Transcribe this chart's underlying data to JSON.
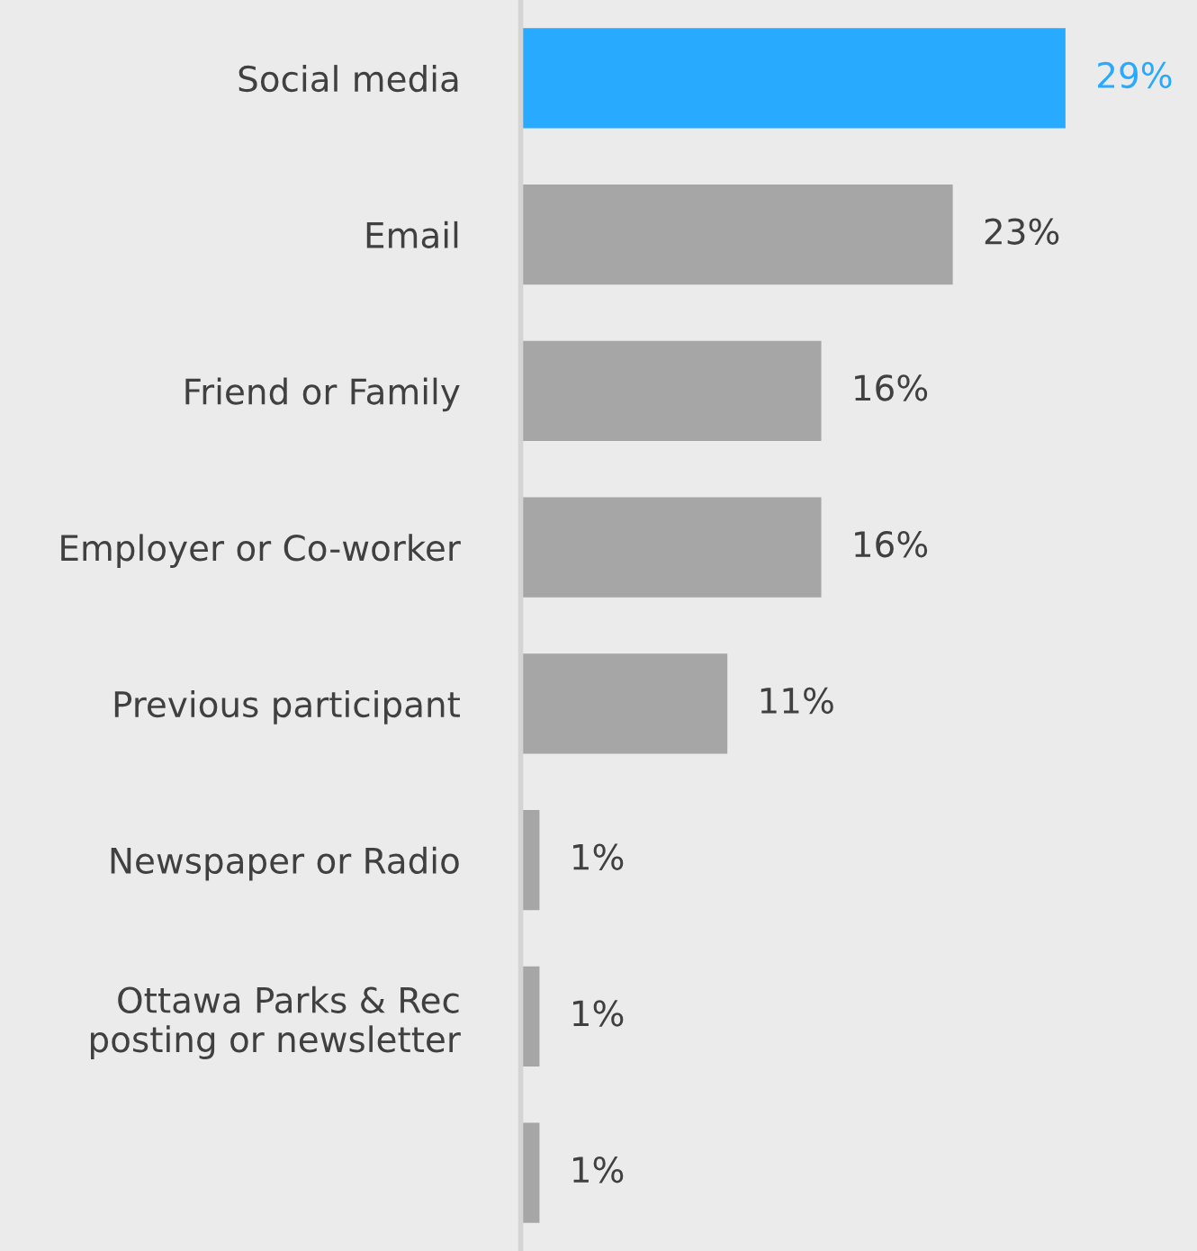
{
  "chart_data": {
    "type": "bar",
    "orientation": "horizontal",
    "categories": [
      "Social media",
      "Email",
      "Friend or Family",
      "Employer or Co-worker",
      "Previous participant",
      "Newspaper or Radio",
      "Ottawa Parks & Rec\nposting or newsletter",
      null
    ],
    "values": [
      29,
      23,
      16,
      16,
      11,
      1,
      1,
      1
    ],
    "colors": [
      "#27aaff",
      "#a6a6a6",
      "#a6a6a6",
      "#a6a6a6",
      "#a6a6a6",
      "#a6a6a6",
      "#a6a6a6",
      "#a6a6a6"
    ],
    "value_labels": [
      "29%",
      "23%",
      "16%",
      "16%",
      "11%",
      "1%",
      "1%",
      "1%"
    ],
    "xlim": [
      0,
      36
    ],
    "tick_labels": "y",
    "grid": false
  }
}
